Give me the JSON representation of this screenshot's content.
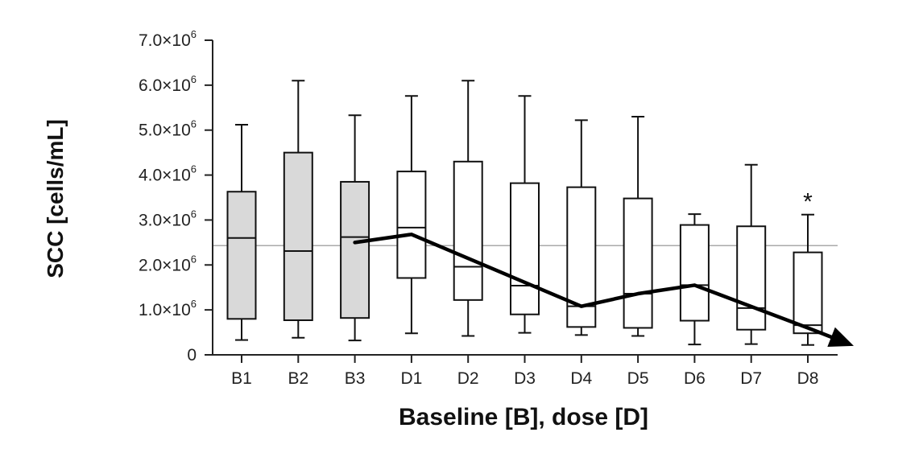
{
  "chart_data": {
    "type": "box",
    "xlabel": "Baseline [B], dose [D]",
    "ylabel": "SCC [cells/mL]",
    "ylim": [
      0,
      7000000
    ],
    "y_ticks": [
      {
        "value": 0,
        "mantissa": "0",
        "exp": ""
      },
      {
        "value": 1000000,
        "mantissa": "1.0",
        "exp": "6"
      },
      {
        "value": 2000000,
        "mantissa": "2.0",
        "exp": "6"
      },
      {
        "value": 3000000,
        "mantissa": "3.0",
        "exp": "6"
      },
      {
        "value": 4000000,
        "mantissa": "4.0",
        "exp": "6"
      },
      {
        "value": 5000000,
        "mantissa": "5.0",
        "exp": "6"
      },
      {
        "value": 6000000,
        "mantissa": "6.0",
        "exp": "6"
      },
      {
        "value": 7000000,
        "mantissa": "7.0",
        "exp": "6"
      }
    ],
    "tick_times": "×10",
    "categories": [
      "B1",
      "B2",
      "B3",
      "D1",
      "D2",
      "D3",
      "D4",
      "D5",
      "D6",
      "D7",
      "D8"
    ],
    "boxes": [
      {
        "category": "B1",
        "min": 330000,
        "q1": 800000,
        "median": 2600000,
        "q3": 3630000,
        "max": 5120000,
        "group": "baseline"
      },
      {
        "category": "B2",
        "min": 380000,
        "q1": 770000,
        "median": 2310000,
        "q3": 4500000,
        "max": 6100000,
        "group": "baseline"
      },
      {
        "category": "B3",
        "min": 320000,
        "q1": 820000,
        "median": 2620000,
        "q3": 3850000,
        "max": 5330000,
        "group": "baseline"
      },
      {
        "category": "D1",
        "min": 480000,
        "q1": 1710000,
        "median": 2830000,
        "q3": 4080000,
        "max": 5760000,
        "group": "dose"
      },
      {
        "category": "D2",
        "min": 420000,
        "q1": 1220000,
        "median": 1960000,
        "q3": 4300000,
        "max": 6100000,
        "group": "dose"
      },
      {
        "category": "D3",
        "min": 490000,
        "q1": 900000,
        "median": 1540000,
        "q3": 3820000,
        "max": 5760000,
        "group": "dose"
      },
      {
        "category": "D4",
        "min": 440000,
        "q1": 620000,
        "median": 1080000,
        "q3": 3730000,
        "max": 5220000,
        "group": "dose"
      },
      {
        "category": "D5",
        "min": 420000,
        "q1": 600000,
        "median": 1360000,
        "q3": 3480000,
        "max": 5300000,
        "group": "dose"
      },
      {
        "category": "D6",
        "min": 230000,
        "q1": 760000,
        "median": 1550000,
        "q3": 2890000,
        "max": 3130000,
        "group": "dose"
      },
      {
        "category": "D7",
        "min": 240000,
        "q1": 560000,
        "median": 1040000,
        "q3": 2860000,
        "max": 4230000,
        "group": "dose"
      },
      {
        "category": "D8",
        "min": 220000,
        "q1": 480000,
        "median": 660000,
        "q3": 2280000,
        "max": 3120000,
        "group": "dose"
      }
    ],
    "reference_line": 2430000,
    "trend_line": [
      {
        "category": "B3",
        "value": 2500000
      },
      {
        "category": "D1",
        "value": 2680000
      },
      {
        "category": "D4",
        "value": 1080000
      },
      {
        "category": "D5",
        "value": 1360000
      },
      {
        "category": "D6",
        "value": 1550000
      },
      {
        "category": "D8",
        "value": 600000
      },
      {
        "category": "end",
        "value": 200000
      }
    ],
    "annotations": [
      {
        "category": "D8",
        "text": "*"
      }
    ],
    "colors": {
      "baseline_fill": "#d9d9d9",
      "dose_fill": "#ffffff",
      "stroke": "#111111",
      "reference": "#aaaaaa"
    }
  }
}
